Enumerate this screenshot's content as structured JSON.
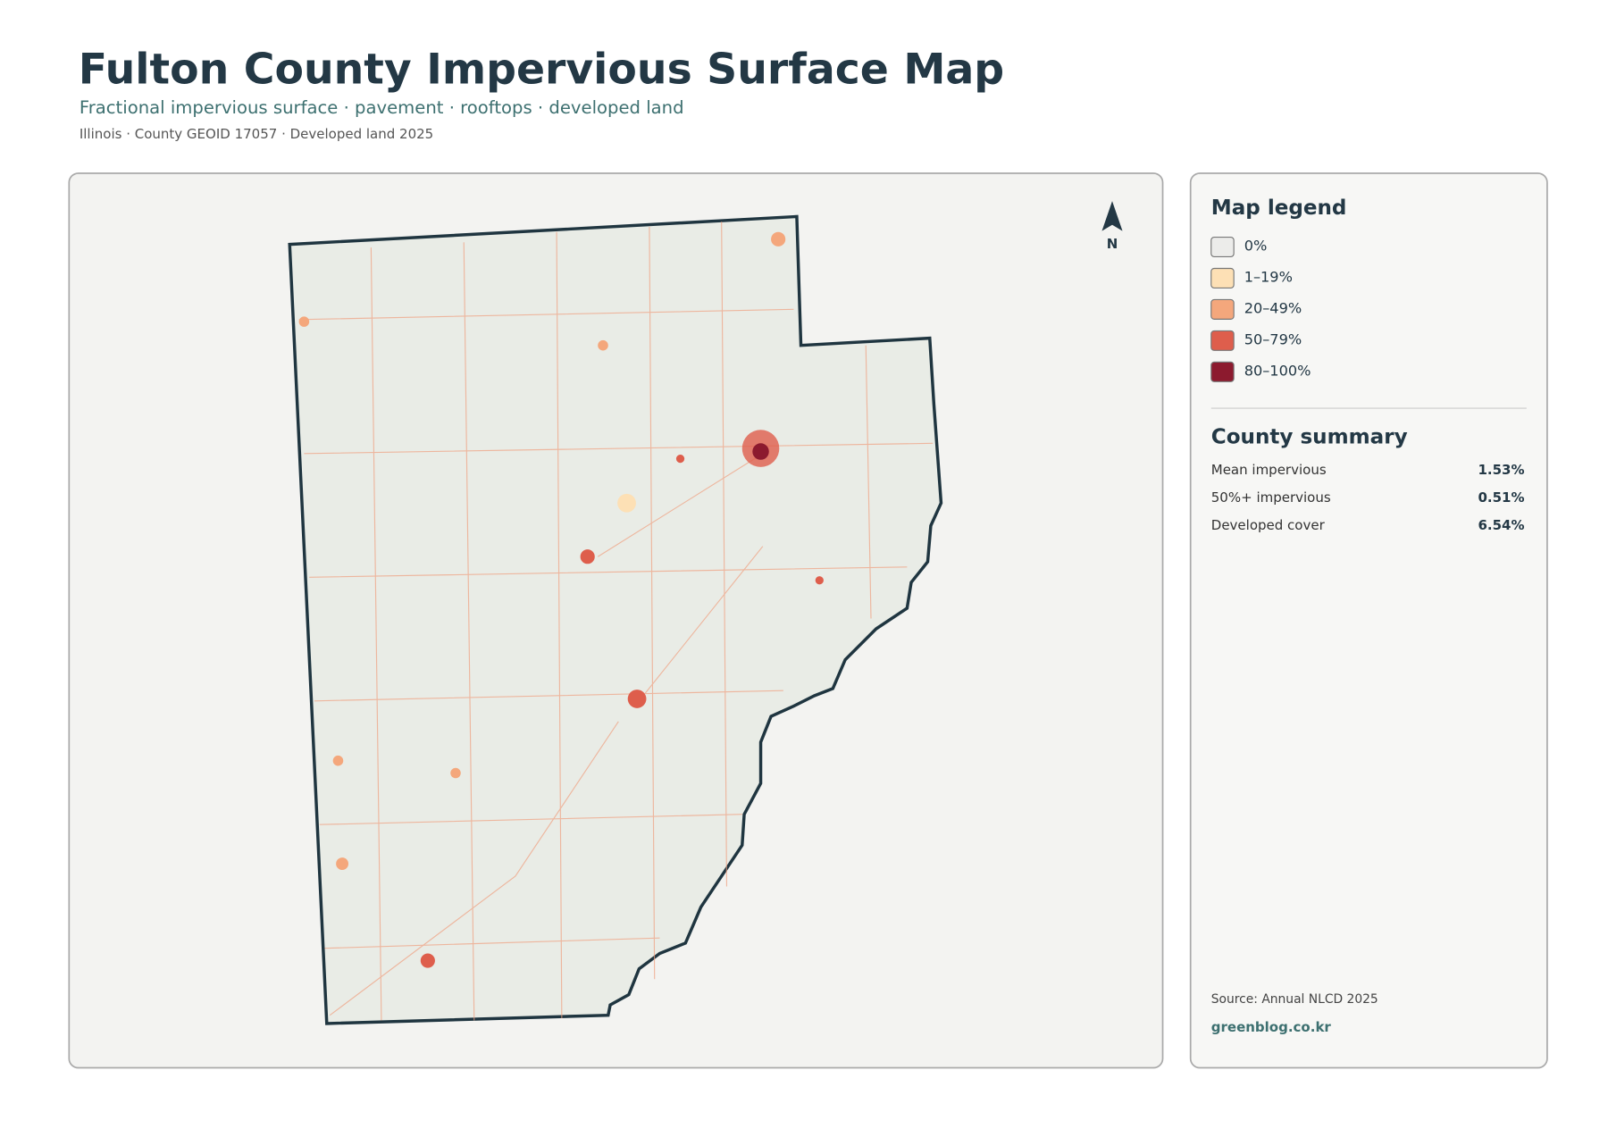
{
  "header": {
    "title": "Fulton County Impervious Surface Map",
    "subtitle": "Fractional impervious surface · pavement · rooftops · developed land",
    "meta": "Illinois · County GEOID 17057 · Developed land 2025"
  },
  "map": {
    "north_label": "N"
  },
  "legend": {
    "title": "Map legend",
    "items": [
      {
        "label": "0%",
        "color": "#ececea"
      },
      {
        "label": "1–19%",
        "color": "#fde0b5"
      },
      {
        "label": "20–49%",
        "color": "#f4a77c"
      },
      {
        "label": "50–79%",
        "color": "#de5e4c"
      },
      {
        "label": "80–100%",
        "color": "#8c1a2e"
      }
    ]
  },
  "summary": {
    "title": "County summary",
    "rows": [
      {
        "label": "Mean impervious",
        "value": "1.53%"
      },
      {
        "label": "50%+ impervious",
        "value": "0.51%"
      },
      {
        "label": "Developed cover",
        "value": "6.54%"
      }
    ]
  },
  "footer": {
    "source": "Source: Annual NLCD 2025",
    "credit": "greenblog.co.kr"
  }
}
